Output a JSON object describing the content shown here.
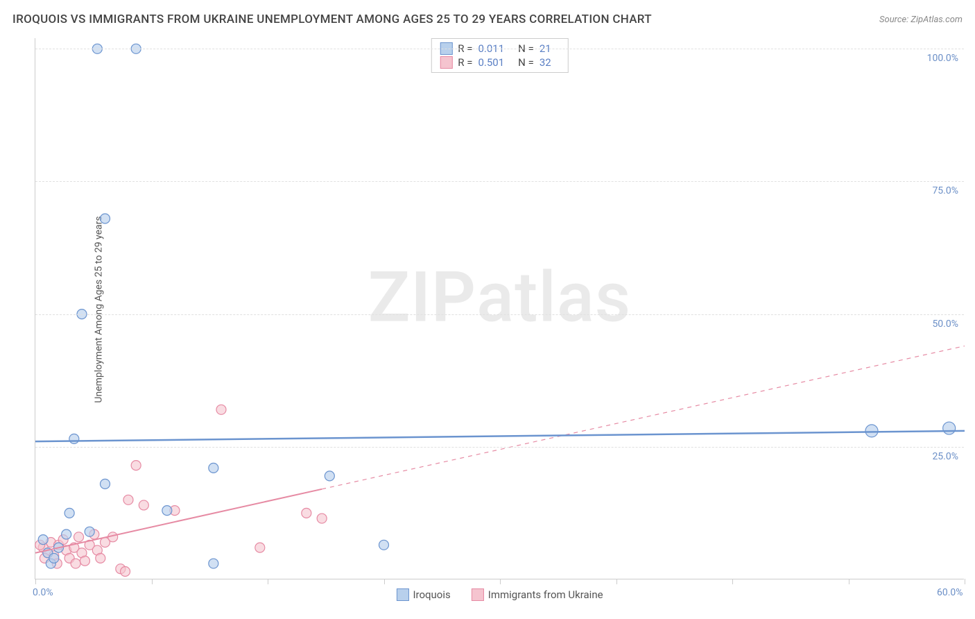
{
  "title": "IROQUOIS VS IMMIGRANTS FROM UKRAINE UNEMPLOYMENT AMONG AGES 25 TO 29 YEARS CORRELATION CHART",
  "source": "Source: ZipAtlas.com",
  "ylabel": "Unemployment Among Ages 25 to 29 years",
  "watermark_a": "ZIP",
  "watermark_b": "atlas",
  "chart": {
    "type": "scatter",
    "xlim": [
      0,
      60
    ],
    "ylim": [
      0,
      102
    ],
    "x_tick_positions": [
      0,
      7.5,
      15,
      22.5,
      30,
      37.5,
      45,
      52.5,
      60
    ],
    "x_tick_labels_shown": {
      "0": "0.0%",
      "60": "60.0%"
    },
    "y_gridlines": [
      25,
      50,
      75,
      100
    ],
    "y_tick_labels": {
      "25": "25.0%",
      "50": "50.0%",
      "75": "75.0%",
      "100": "100.0%"
    },
    "background_color": "#ffffff",
    "grid_color": "#e0e0e0",
    "axis_color": "#cccccc",
    "tick_label_color": "#6b8fc7",
    "marker_radius": 7,
    "marker_radius_large": 9,
    "series": {
      "iroquois": {
        "label": "Iroquois",
        "fill": "#b8d0ec",
        "stroke": "#6b94cf",
        "fill_opacity": 0.65,
        "R": "0.011",
        "N": "21",
        "trend": {
          "x1": 0,
          "y1": 26.0,
          "x2": 60,
          "y2": 28.0,
          "dashed_after_x": null,
          "stroke_width": 2.5
        },
        "points": [
          {
            "x": 4.0,
            "y": 100.0
          },
          {
            "x": 6.5,
            "y": 100.0
          },
          {
            "x": 4.5,
            "y": 68.0
          },
          {
            "x": 3.0,
            "y": 50.0
          },
          {
            "x": 2.5,
            "y": 26.5
          },
          {
            "x": 54.0,
            "y": 28.0,
            "large": true
          },
          {
            "x": 59.0,
            "y": 28.5,
            "large": true
          },
          {
            "x": 11.5,
            "y": 21.0
          },
          {
            "x": 19.0,
            "y": 19.5
          },
          {
            "x": 4.5,
            "y": 18.0
          },
          {
            "x": 2.2,
            "y": 12.5
          },
          {
            "x": 8.5,
            "y": 13.0
          },
          {
            "x": 11.5,
            "y": 3.0
          },
          {
            "x": 1.0,
            "y": 3.0
          },
          {
            "x": 1.5,
            "y": 6.0
          },
          {
            "x": 22.5,
            "y": 6.5
          },
          {
            "x": 0.5,
            "y": 7.5
          },
          {
            "x": 2.0,
            "y": 8.5
          },
          {
            "x": 0.8,
            "y": 5.0
          },
          {
            "x": 3.5,
            "y": 9.0
          },
          {
            "x": 1.2,
            "y": 4.0
          }
        ]
      },
      "ukraine": {
        "label": "Immigrants from Ukraine",
        "fill": "#f5c4cf",
        "stroke": "#e68aa3",
        "fill_opacity": 0.6,
        "R": "0.501",
        "N": "32",
        "trend": {
          "x1": 0,
          "y1": 5.0,
          "x2": 60,
          "y2": 44.0,
          "dashed_after_x": 18.5,
          "stroke_width": 2
        },
        "points": [
          {
            "x": 12.0,
            "y": 32.0
          },
          {
            "x": 6.5,
            "y": 21.5
          },
          {
            "x": 6.0,
            "y": 15.0
          },
          {
            "x": 7.0,
            "y": 14.0
          },
          {
            "x": 9.0,
            "y": 13.0
          },
          {
            "x": 17.5,
            "y": 12.5
          },
          {
            "x": 18.5,
            "y": 11.5
          },
          {
            "x": 14.5,
            "y": 6.0
          },
          {
            "x": 5.5,
            "y": 2.0
          },
          {
            "x": 5.8,
            "y": 1.5
          },
          {
            "x": 1.0,
            "y": 7.0
          },
          {
            "x": 1.5,
            "y": 6.5
          },
          {
            "x": 0.5,
            "y": 6.0
          },
          {
            "x": 2.0,
            "y": 5.5
          },
          {
            "x": 0.8,
            "y": 5.0
          },
          {
            "x": 1.2,
            "y": 4.5
          },
          {
            "x": 2.5,
            "y": 6.0
          },
          {
            "x": 3.0,
            "y": 5.0
          },
          {
            "x": 2.2,
            "y": 4.0
          },
          {
            "x": 0.3,
            "y": 6.5
          },
          {
            "x": 1.8,
            "y": 7.5
          },
          {
            "x": 3.5,
            "y": 6.5
          },
          {
            "x": 4.0,
            "y": 5.5
          },
          {
            "x": 3.2,
            "y": 3.5
          },
          {
            "x": 4.5,
            "y": 7.0
          },
          {
            "x": 2.8,
            "y": 8.0
          },
          {
            "x": 0.6,
            "y": 4.0
          },
          {
            "x": 1.4,
            "y": 3.0
          },
          {
            "x": 3.8,
            "y": 8.5
          },
          {
            "x": 2.6,
            "y": 3.0
          },
          {
            "x": 4.2,
            "y": 4.0
          },
          {
            "x": 5.0,
            "y": 8.0
          }
        ]
      }
    }
  },
  "legend_top": {
    "rows": [
      {
        "series": "iroquois",
        "R_label": "R =",
        "N_label": "N ="
      },
      {
        "series": "ukraine",
        "R_label": "R =",
        "N_label": "N ="
      }
    ]
  }
}
